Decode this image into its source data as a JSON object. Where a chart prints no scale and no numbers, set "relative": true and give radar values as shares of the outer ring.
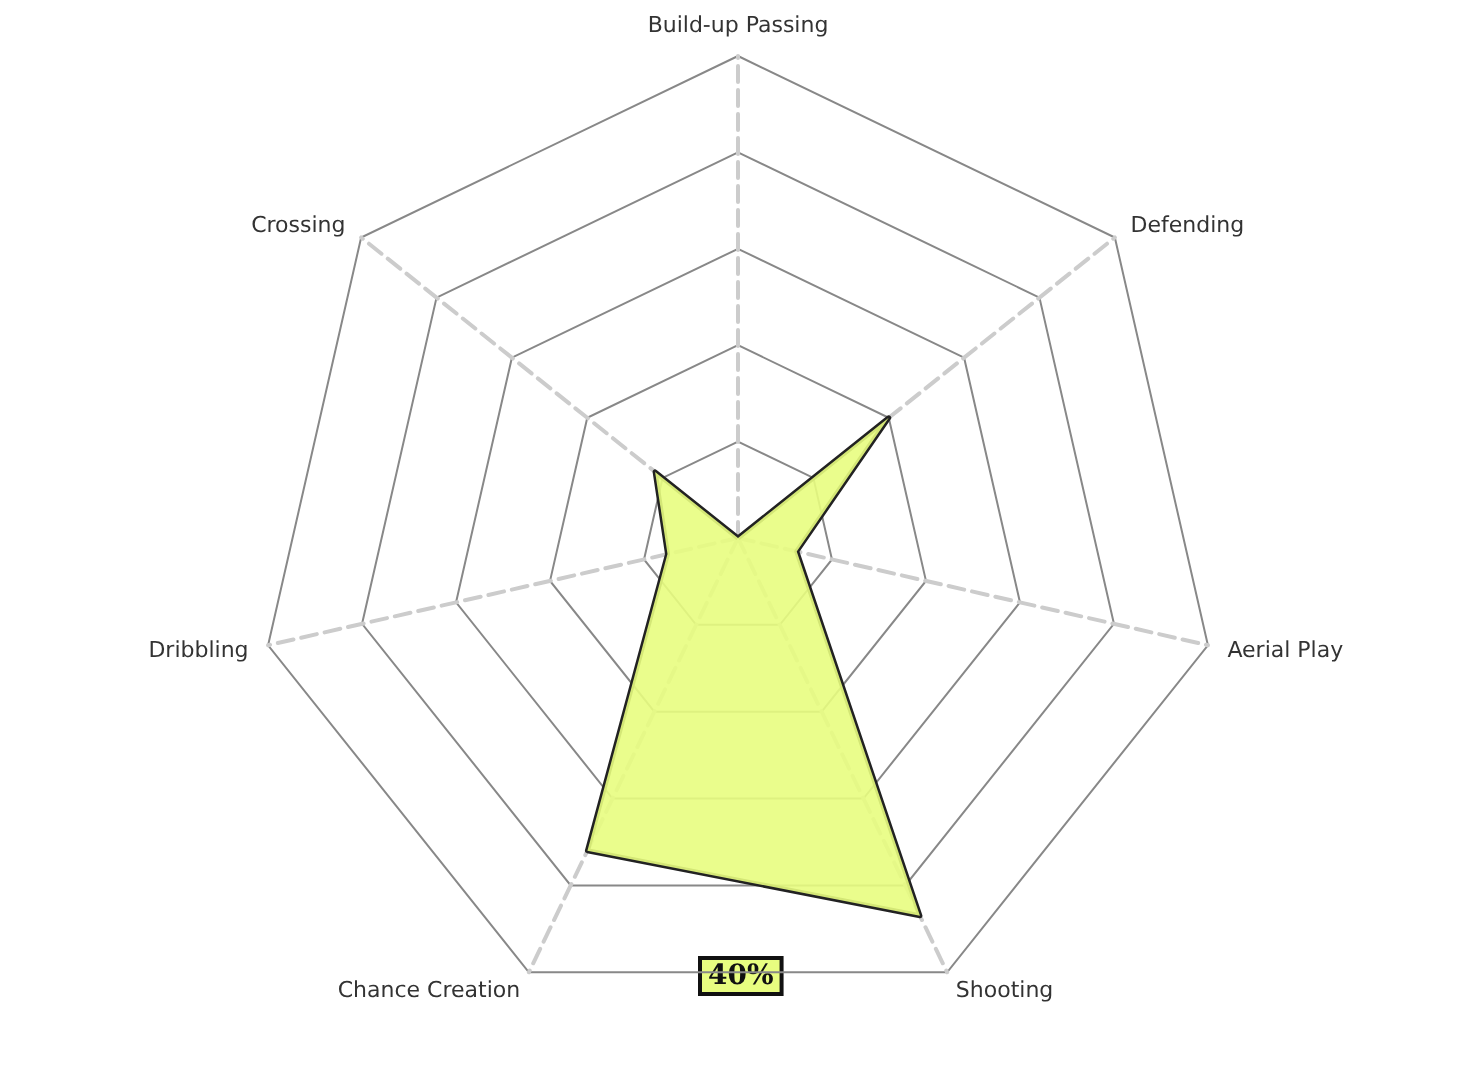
{
  "chart_data": {
    "type": "radar",
    "relative": true,
    "categories": [
      "Build-up Passing",
      "Defending",
      "Aerial Play",
      "Shooting",
      "Chance Creation",
      "Dribbling",
      "Crossing"
    ],
    "series": [
      {
        "color": "#e8fd80",
        "values": [
          0,
          0.4,
          0.125,
          0.87,
          0.72,
          0.15,
          0.22
        ]
      }
    ],
    "annotations": [
      "40%"
    ]
  }
}
